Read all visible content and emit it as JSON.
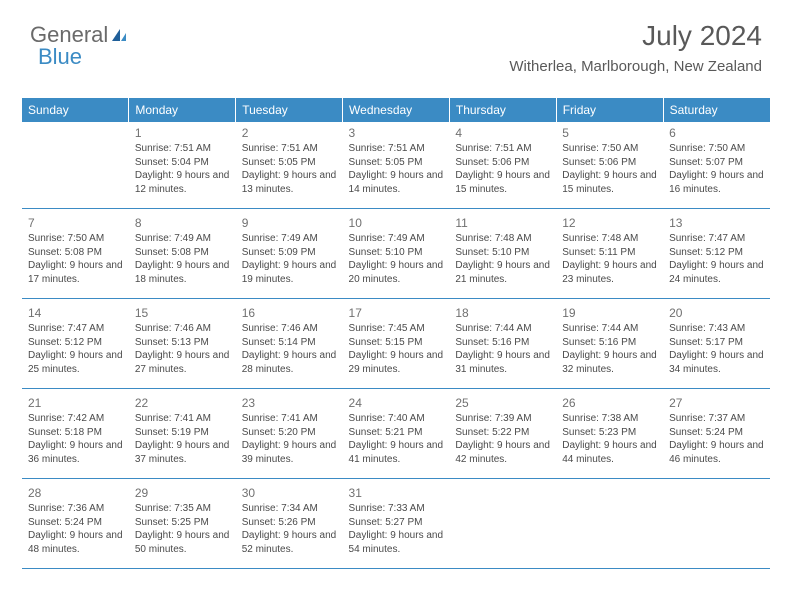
{
  "logo": {
    "text1": "General",
    "text2": "Blue"
  },
  "title": "July 2024",
  "location": "Witherlea, Marlborough, New Zealand",
  "colors": {
    "header_bg": "#3b8bc4",
    "header_text": "#ffffff",
    "body_text": "#4a4a4a",
    "title_text": "#595959",
    "row_divider": "#3b8bc4",
    "background": "#ffffff"
  },
  "day_headers": [
    "Sunday",
    "Monday",
    "Tuesday",
    "Wednesday",
    "Thursday",
    "Friday",
    "Saturday"
  ],
  "weeks": [
    [
      null,
      {
        "n": "1",
        "sr": "7:51 AM",
        "ss": "5:04 PM",
        "dl": "9 hours and 12 minutes."
      },
      {
        "n": "2",
        "sr": "7:51 AM",
        "ss": "5:05 PM",
        "dl": "9 hours and 13 minutes."
      },
      {
        "n": "3",
        "sr": "7:51 AM",
        "ss": "5:05 PM",
        "dl": "9 hours and 14 minutes."
      },
      {
        "n": "4",
        "sr": "7:51 AM",
        "ss": "5:06 PM",
        "dl": "9 hours and 15 minutes."
      },
      {
        "n": "5",
        "sr": "7:50 AM",
        "ss": "5:06 PM",
        "dl": "9 hours and 15 minutes."
      },
      {
        "n": "6",
        "sr": "7:50 AM",
        "ss": "5:07 PM",
        "dl": "9 hours and 16 minutes."
      }
    ],
    [
      {
        "n": "7",
        "sr": "7:50 AM",
        "ss": "5:08 PM",
        "dl": "9 hours and 17 minutes."
      },
      {
        "n": "8",
        "sr": "7:49 AM",
        "ss": "5:08 PM",
        "dl": "9 hours and 18 minutes."
      },
      {
        "n": "9",
        "sr": "7:49 AM",
        "ss": "5:09 PM",
        "dl": "9 hours and 19 minutes."
      },
      {
        "n": "10",
        "sr": "7:49 AM",
        "ss": "5:10 PM",
        "dl": "9 hours and 20 minutes."
      },
      {
        "n": "11",
        "sr": "7:48 AM",
        "ss": "5:10 PM",
        "dl": "9 hours and 21 minutes."
      },
      {
        "n": "12",
        "sr": "7:48 AM",
        "ss": "5:11 PM",
        "dl": "9 hours and 23 minutes."
      },
      {
        "n": "13",
        "sr": "7:47 AM",
        "ss": "5:12 PM",
        "dl": "9 hours and 24 minutes."
      }
    ],
    [
      {
        "n": "14",
        "sr": "7:47 AM",
        "ss": "5:12 PM",
        "dl": "9 hours and 25 minutes."
      },
      {
        "n": "15",
        "sr": "7:46 AM",
        "ss": "5:13 PM",
        "dl": "9 hours and 27 minutes."
      },
      {
        "n": "16",
        "sr": "7:46 AM",
        "ss": "5:14 PM",
        "dl": "9 hours and 28 minutes."
      },
      {
        "n": "17",
        "sr": "7:45 AM",
        "ss": "5:15 PM",
        "dl": "9 hours and 29 minutes."
      },
      {
        "n": "18",
        "sr": "7:44 AM",
        "ss": "5:16 PM",
        "dl": "9 hours and 31 minutes."
      },
      {
        "n": "19",
        "sr": "7:44 AM",
        "ss": "5:16 PM",
        "dl": "9 hours and 32 minutes."
      },
      {
        "n": "20",
        "sr": "7:43 AM",
        "ss": "5:17 PM",
        "dl": "9 hours and 34 minutes."
      }
    ],
    [
      {
        "n": "21",
        "sr": "7:42 AM",
        "ss": "5:18 PM",
        "dl": "9 hours and 36 minutes."
      },
      {
        "n": "22",
        "sr": "7:41 AM",
        "ss": "5:19 PM",
        "dl": "9 hours and 37 minutes."
      },
      {
        "n": "23",
        "sr": "7:41 AM",
        "ss": "5:20 PM",
        "dl": "9 hours and 39 minutes."
      },
      {
        "n": "24",
        "sr": "7:40 AM",
        "ss": "5:21 PM",
        "dl": "9 hours and 41 minutes."
      },
      {
        "n": "25",
        "sr": "7:39 AM",
        "ss": "5:22 PM",
        "dl": "9 hours and 42 minutes."
      },
      {
        "n": "26",
        "sr": "7:38 AM",
        "ss": "5:23 PM",
        "dl": "9 hours and 44 minutes."
      },
      {
        "n": "27",
        "sr": "7:37 AM",
        "ss": "5:24 PM",
        "dl": "9 hours and 46 minutes."
      }
    ],
    [
      {
        "n": "28",
        "sr": "7:36 AM",
        "ss": "5:24 PM",
        "dl": "9 hours and 48 minutes."
      },
      {
        "n": "29",
        "sr": "7:35 AM",
        "ss": "5:25 PM",
        "dl": "9 hours and 50 minutes."
      },
      {
        "n": "30",
        "sr": "7:34 AM",
        "ss": "5:26 PM",
        "dl": "9 hours and 52 minutes."
      },
      {
        "n": "31",
        "sr": "7:33 AM",
        "ss": "5:27 PM",
        "dl": "9 hours and 54 minutes."
      },
      null,
      null,
      null
    ]
  ],
  "labels": {
    "sunrise": "Sunrise:",
    "sunset": "Sunset:",
    "daylight": "Daylight:"
  }
}
